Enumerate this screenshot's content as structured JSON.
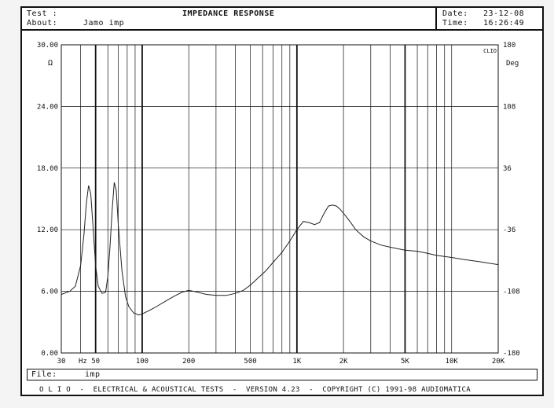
{
  "header": {
    "test_label": "Test :",
    "about_label": "About:",
    "about_value": "Jamo imp",
    "title": "IMPEDANCE RESPONSE",
    "date_label": "Date:",
    "date_value": "23-12-08",
    "time_label": "Time:",
    "time_value": "16:26:49"
  },
  "footer": {
    "file_label": "File:",
    "file_value": "imp",
    "credits": "O L I O  -  ELECTRICAL & ACOUSTICAL TESTS  -  VERSION 4.23  -  COPYRIGHT (C) 1991-98 AUDIOMATICA"
  },
  "colors": {
    "trace": "#222222",
    "grid": "#111111",
    "background": "#ffffff"
  },
  "chart_data": {
    "type": "line",
    "title": "IMPEDANCE RESPONSE",
    "x_scale": "log",
    "xlim": [
      30,
      20000
    ],
    "ylim": [
      0,
      30
    ],
    "y2lim": [
      -180,
      180
    ],
    "left_axis_unit": "Ω",
    "right_axis_unit": "Deg",
    "corner_label": "CLIO",
    "grid": true,
    "y_ticks": [
      {
        "v": 0,
        "label": "0.00"
      },
      {
        "v": 6,
        "label": "6.00"
      },
      {
        "v": 12,
        "label": "12.00"
      },
      {
        "v": 18,
        "label": "18.00"
      },
      {
        "v": 24,
        "label": "24.00"
      },
      {
        "v": 30,
        "label": "30.00"
      }
    ],
    "y2_ticks": [
      {
        "v": -180,
        "label": "-180"
      },
      {
        "v": -108,
        "label": "-108"
      },
      {
        "v": -36,
        "label": "-36"
      },
      {
        "v": 36,
        "label": "36"
      },
      {
        "v": 108,
        "label": "108"
      },
      {
        "v": 180,
        "label": "180"
      }
    ],
    "x_ticks": [
      {
        "v": 30,
        "label": "30"
      },
      {
        "v": 50,
        "label": "50"
      },
      {
        "v": 100,
        "label": "100"
      },
      {
        "v": 200,
        "label": "200"
      },
      {
        "v": 500,
        "label": "500"
      },
      {
        "v": 1000,
        "label": "1K"
      },
      {
        "v": 2000,
        "label": "2K"
      },
      {
        "v": 5000,
        "label": "5K"
      },
      {
        "v": 10000,
        "label": "10K"
      },
      {
        "v": 20000,
        "label": "20K"
      }
    ],
    "x_unit_label": "Hz",
    "bold_gridlines_x": [
      50,
      100,
      1000,
      5000
    ],
    "series": [
      {
        "x": [
          30,
          34,
          37,
          40,
          42,
          43.5,
          45,
          46.5,
          48,
          50,
          52,
          55,
          58,
          60,
          62,
          64,
          66,
          68,
          70,
          74,
          78,
          82,
          88,
          95,
          100,
          110,
          120,
          140,
          160,
          180,
          200,
          230,
          260,
          300,
          350,
          400,
          450,
          500,
          560,
          630,
          700,
          800,
          900,
          1000,
          1100,
          1200,
          1300,
          1400,
          1500,
          1600,
          1700,
          1800,
          1900,
          2000,
          2200,
          2400,
          2700,
          3000,
          3500,
          4000,
          5000,
          6000,
          7000,
          8000,
          10000,
          12000,
          15000,
          20000
        ],
        "y": [
          5.7,
          6.0,
          6.5,
          8.5,
          11.5,
          14.5,
          16.3,
          15.5,
          12.5,
          8.5,
          6.5,
          5.8,
          5.9,
          7.5,
          10.5,
          14.0,
          16.6,
          15.8,
          12.5,
          8.0,
          5.5,
          4.5,
          3.9,
          3.7,
          3.8,
          4.1,
          4.4,
          5.0,
          5.5,
          5.9,
          6.1,
          5.9,
          5.7,
          5.6,
          5.6,
          5.8,
          6.1,
          6.6,
          7.3,
          8.0,
          8.8,
          9.8,
          10.9,
          12.0,
          12.8,
          12.7,
          12.5,
          12.7,
          13.6,
          14.3,
          14.4,
          14.3,
          14.0,
          13.6,
          12.8,
          12.0,
          11.3,
          10.9,
          10.5,
          10.3,
          10.0,
          9.9,
          9.7,
          9.5,
          9.3,
          9.1,
          8.9,
          8.6
        ]
      }
    ]
  }
}
